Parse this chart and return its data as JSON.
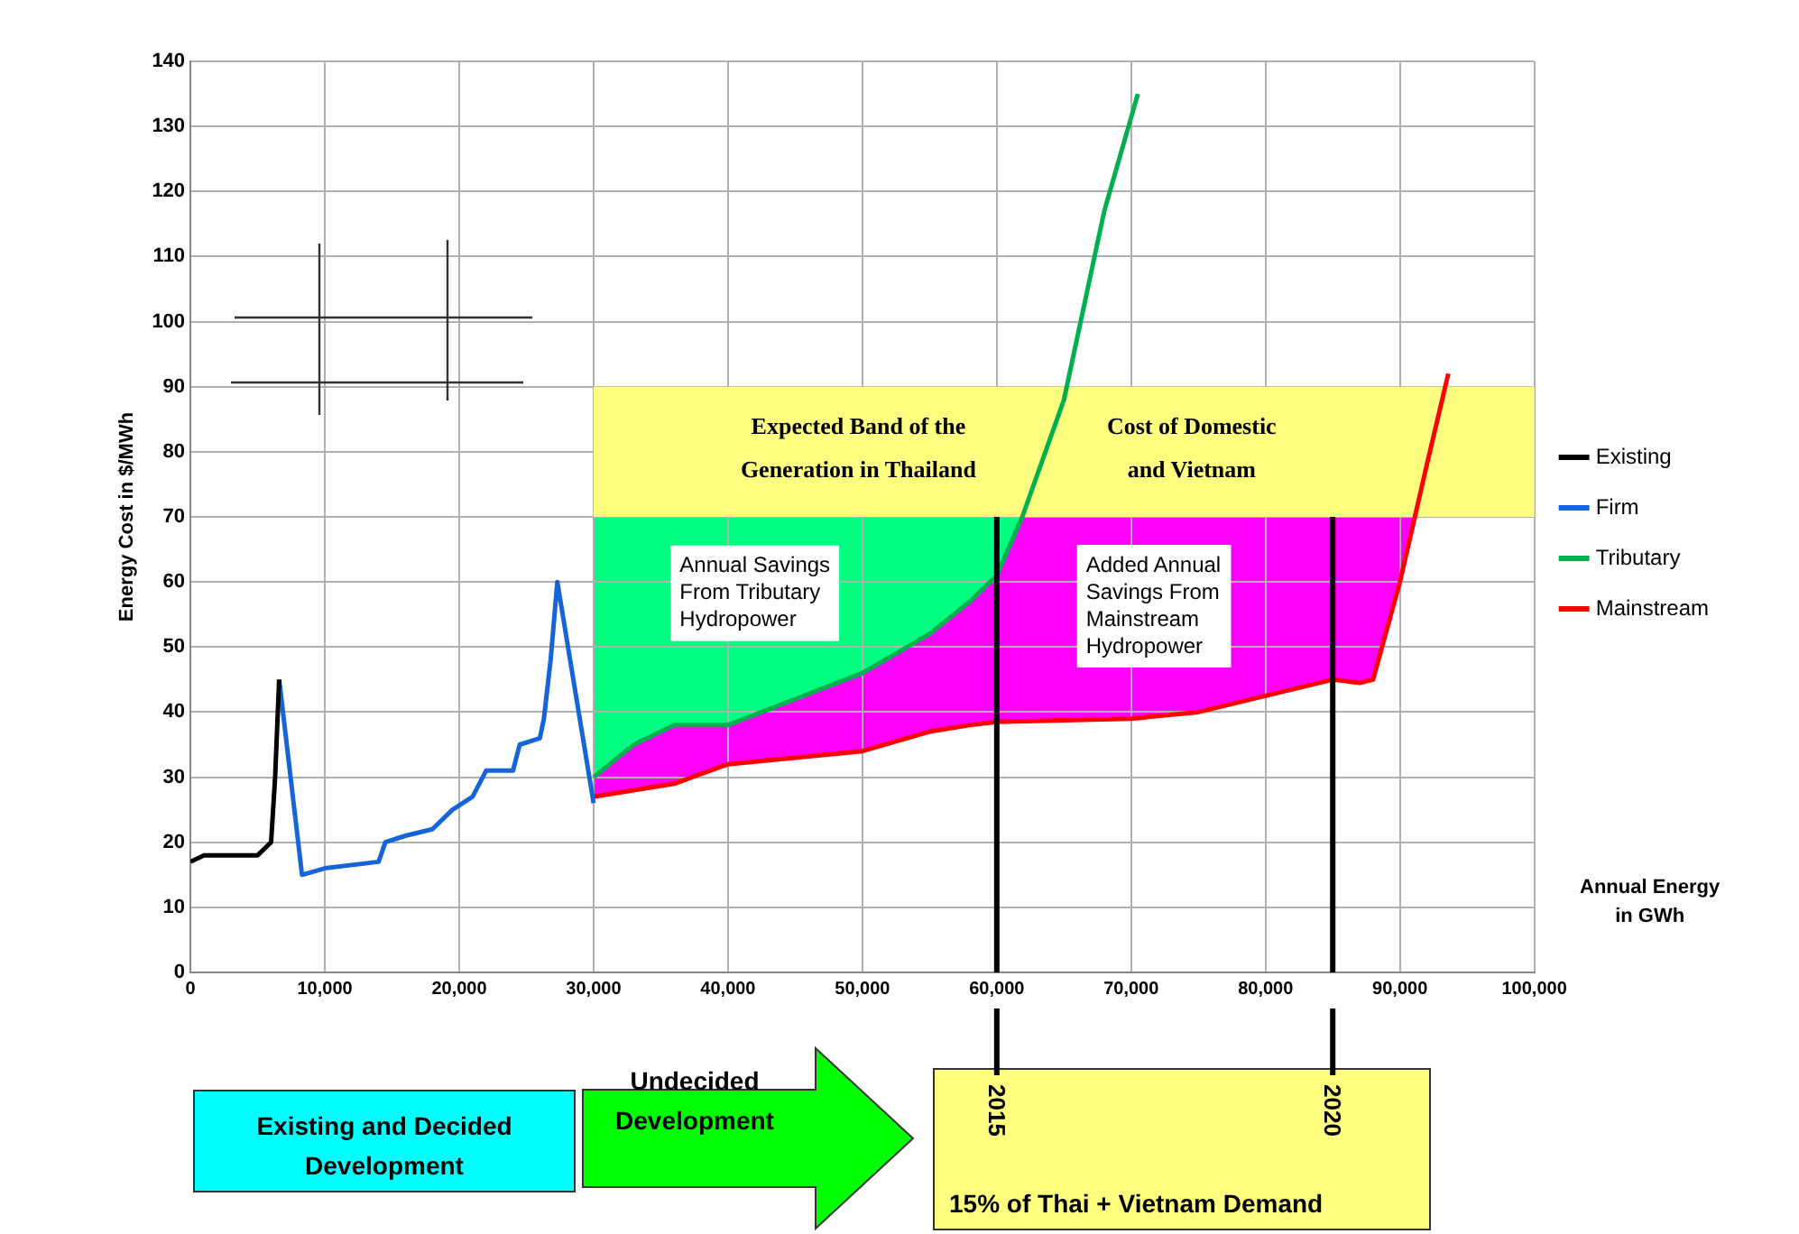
{
  "chart_data": {
    "type": "line",
    "xlabel": "Annual Energy\nin GWh",
    "ylabel": "Energy Cost in $/MWh",
    "xlim": [
      0,
      100000
    ],
    "ylim": [
      0,
      140
    ],
    "xticks": [
      0,
      {
        "value": 10000,
        "label": "10,000"
      },
      {
        "value": 20000,
        "label": "20,000"
      },
      {
        "value": 30000,
        "label": "30,000"
      },
      {
        "value": 40000,
        "label": "40,000"
      },
      {
        "value": 50000,
        "label": "50,000"
      },
      {
        "value": 60000,
        "label": "60,000"
      },
      {
        "value": 70000,
        "label": "70,000"
      },
      {
        "value": 80000,
        "label": "80,000"
      },
      {
        "value": 90000,
        "label": "90,000"
      },
      {
        "value": 100000,
        "label": "100,000"
      }
    ],
    "yticks": [
      0,
      10,
      20,
      30,
      40,
      50,
      60,
      70,
      80,
      90,
      100,
      110,
      120,
      130,
      140
    ],
    "grid": true,
    "legend": "right",
    "marker": "none",
    "line_style": "solid",
    "series": [
      {
        "name": "Existing",
        "color": "#000000",
        "x": [
          0,
          1000,
          5000,
          6000,
          6300,
          6600
        ],
        "values": [
          17,
          18,
          18,
          20,
          30,
          45
        ]
      },
      {
        "name": "Firm",
        "color": "#1565d8",
        "x": [
          6600,
          8300,
          10000,
          14000,
          14500,
          16000,
          18000,
          19500,
          21000,
          22000,
          24000,
          24500,
          26000,
          26300,
          26800,
          27300,
          30000
        ],
        "values": [
          45,
          15,
          16,
          17,
          20,
          21,
          22,
          25,
          27,
          31,
          31,
          35,
          36,
          39,
          48,
          60,
          26
        ]
      },
      {
        "name": "Tributary",
        "color": "#00b050",
        "x": [
          30000,
          33000,
          36000,
          40000,
          45000,
          50000,
          55000,
          58000,
          60000,
          61900,
          65000,
          68000,
          70500
        ],
        "values": [
          30,
          35,
          38,
          38,
          42,
          46,
          52,
          57,
          61,
          70,
          88,
          117,
          135
        ]
      },
      {
        "name": "Mainstream",
        "color": "#ff0000",
        "x": [
          30000,
          33000,
          36000,
          40000,
          45000,
          50000,
          55000,
          58000,
          60000,
          70000,
          75000,
          80000,
          85000,
          87000,
          88000,
          90000,
          92000,
          93600
        ],
        "values": [
          27,
          28,
          29,
          32,
          33,
          34,
          37,
          38,
          38.5,
          39,
          40,
          42.5,
          45,
          44.5,
          45,
          60,
          78,
          92
        ]
      }
    ],
    "bands": [
      {
        "axis": "y",
        "from": 70,
        "to": 90,
        "color": "#ffff80"
      }
    ],
    "ref_lines": [
      {
        "axis": "x",
        "value": 60000,
        "color": "#000000"
      },
      {
        "axis": "x",
        "value": 85000,
        "color": "#000000"
      }
    ],
    "annotations": [
      "Expected Band of the\nGeneration in Thailand",
      "Cost of Domestic\nand Vietnam",
      "Annual Savings\nFrom Tributary\nHydropower",
      "Added Annual\nSavings From\nMainstream\nHydropower",
      "2015",
      "2020",
      "Existing and Decided\nDevelopment",
      "Undecided\nDevelopment",
      "15% of Thai + Vietnam Demand"
    ]
  }
}
